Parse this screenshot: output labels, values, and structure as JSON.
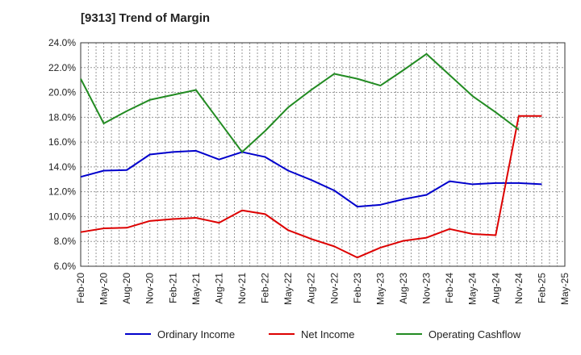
{
  "chart_data": {
    "type": "line",
    "title": "[9313]  Trend of Margin",
    "x": [
      "Feb-20",
      "May-20",
      "Aug-20",
      "Nov-20",
      "Feb-21",
      "May-21",
      "Aug-21",
      "Nov-21",
      "Feb-22",
      "May-22",
      "Aug-22",
      "Nov-22",
      "Feb-23",
      "May-23",
      "Aug-23",
      "Nov-23",
      "Feb-24",
      "May-24",
      "Aug-24",
      "Nov-24",
      "Feb-25",
      "May-25"
    ],
    "y_ticks": [
      "6.0%",
      "8.0%",
      "10.0%",
      "12.0%",
      "14.0%",
      "16.0%",
      "18.0%",
      "20.0%",
      "22.0%",
      "24.0%"
    ],
    "ylim": [
      6,
      24
    ],
    "grid": true,
    "legend_position": "bottom",
    "series": [
      {
        "name": "Ordinary Income",
        "color": "#0000cc",
        "values": [
          13.2,
          13.7,
          13.75,
          15.0,
          15.2,
          15.3,
          14.6,
          15.2,
          14.8,
          13.7,
          12.95,
          12.1,
          10.8,
          10.95,
          11.4,
          11.75,
          12.85,
          12.6,
          12.7,
          12.7,
          12.6,
          null
        ]
      },
      {
        "name": "Net Income",
        "color": "#dd0000",
        "values": [
          8.75,
          9.05,
          9.1,
          9.65,
          9.8,
          9.9,
          9.5,
          10.5,
          10.2,
          8.9,
          8.2,
          7.6,
          6.7,
          7.5,
          8.05,
          8.3,
          9.0,
          8.6,
          8.5,
          18.1,
          18.1,
          null
        ]
      },
      {
        "name": "Operating Cashflow",
        "color": "#228b22",
        "values": [
          21.1,
          17.5,
          18.5,
          19.4,
          19.8,
          20.2,
          17.7,
          15.2,
          16.9,
          18.8,
          20.2,
          21.5,
          21.1,
          20.55,
          21.8,
          23.1,
          21.4,
          19.7,
          18.4,
          17.0,
          null,
          null
        ]
      }
    ]
  }
}
